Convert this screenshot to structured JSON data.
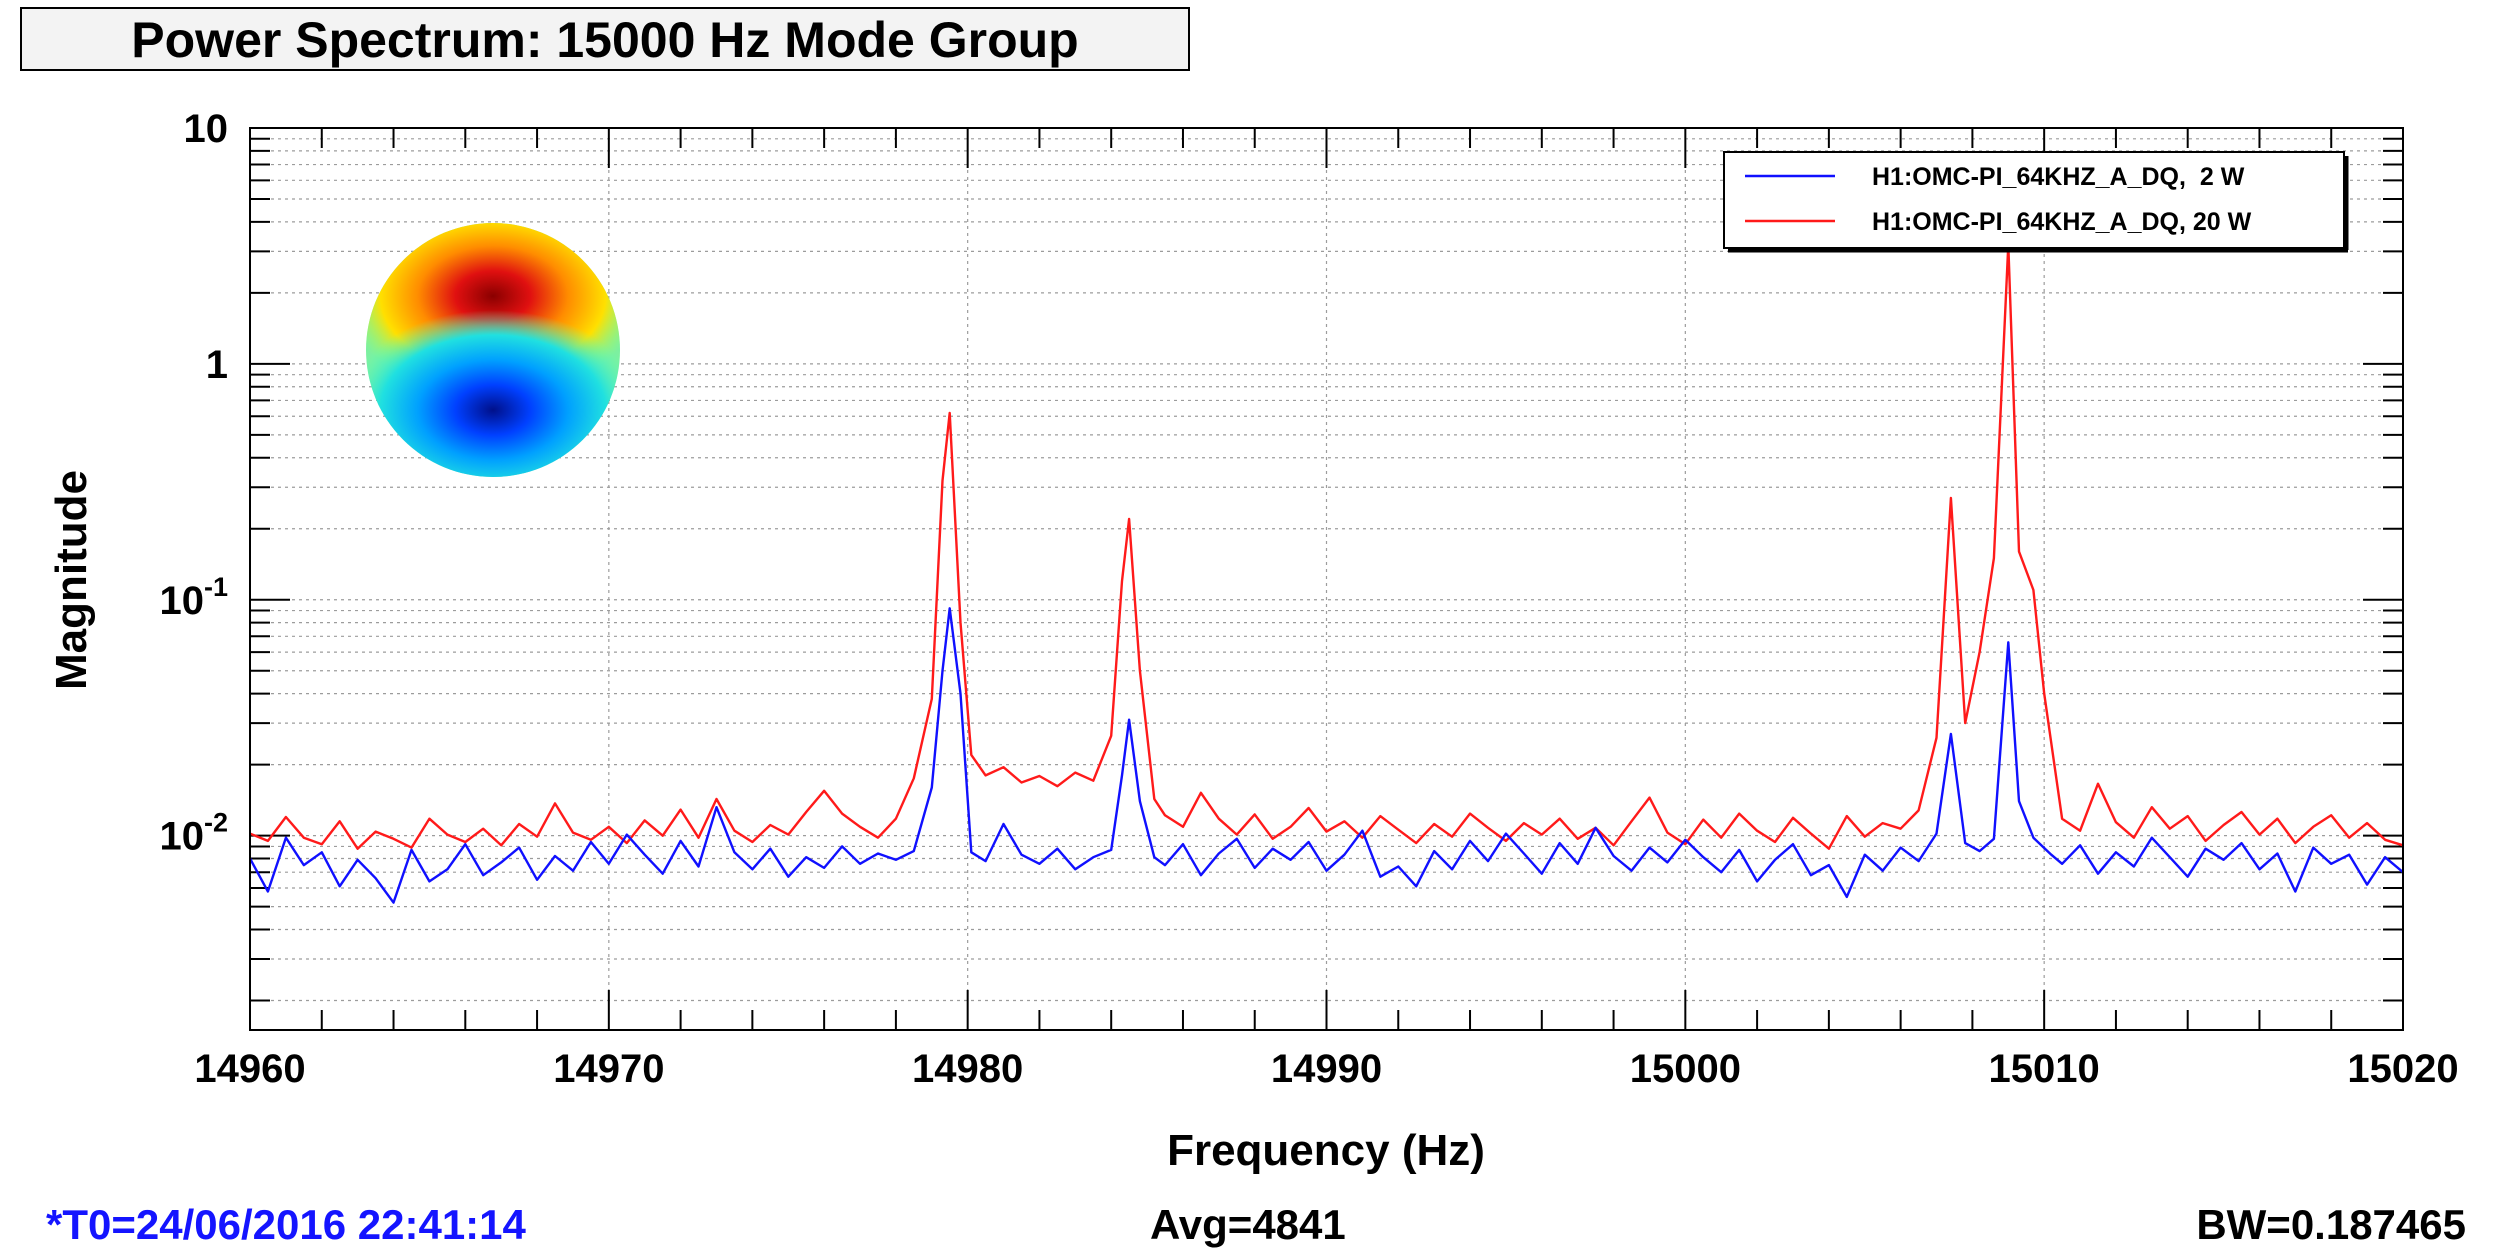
{
  "page_title": "Power Spectrum: 15000 Hz Mode Group",
  "footer": {
    "t0": "*T0=24/06/2016 22:41:14",
    "avg": "Avg=4841",
    "bw": "BW=0.187465"
  },
  "colors": {
    "series_2w": "#1010ff",
    "series_20w": "#ff1a1a",
    "footer_t0": "#1414ff",
    "grid": "#9c9c9c",
    "title_box": "#f3f3f3"
  },
  "inset_image": "mode-shape-image",
  "chart_data": {
    "type": "line",
    "title": "Power Spectrum: 15000 Hz Mode Group",
    "xlabel": "Frequency (Hz)",
    "ylabel": "Magnitude",
    "xlim": [
      14960,
      15020
    ],
    "ylim": [
      0.0015,
      10
    ],
    "yscale": "log",
    "grid": true,
    "legend_position": "top-right",
    "x_ticks": [
      {
        "value": 14960,
        "label": "14960"
      },
      {
        "value": 14970,
        "label": "14970"
      },
      {
        "value": 14980,
        "label": "14980"
      },
      {
        "value": 14990,
        "label": "14990"
      },
      {
        "value": 15000,
        "label": "15000"
      },
      {
        "value": 15010,
        "label": "15010"
      },
      {
        "value": 15020,
        "label": "15020"
      }
    ],
    "y_ticks": [
      {
        "value": 10,
        "base": "10",
        "exp": ""
      },
      {
        "value": 1,
        "base": "1",
        "exp": ""
      },
      {
        "value": 0.1,
        "base": "10",
        "exp": "-1"
      },
      {
        "value": 0.01,
        "base": "10",
        "exp": "-2"
      }
    ],
    "series": [
      {
        "name": "H1:OMC-PI_64KHZ_A_DQ,  2 W",
        "color": "#1010ff",
        "points": [
          [
            14960.0,
            0.008
          ],
          [
            14960.5,
            0.0058
          ],
          [
            14961.0,
            0.0098
          ],
          [
            14961.5,
            0.0075
          ],
          [
            14962.0,
            0.0085
          ],
          [
            14962.5,
            0.0061
          ],
          [
            14963.0,
            0.0079
          ],
          [
            14963.5,
            0.0066
          ],
          [
            14964.0,
            0.0052
          ],
          [
            14964.5,
            0.0087
          ],
          [
            14965.0,
            0.0064
          ],
          [
            14965.5,
            0.0072
          ],
          [
            14966.0,
            0.0092
          ],
          [
            14966.5,
            0.0068
          ],
          [
            14967.0,
            0.0077
          ],
          [
            14967.5,
            0.0089
          ],
          [
            14968.0,
            0.0065
          ],
          [
            14968.5,
            0.0082
          ],
          [
            14969.0,
            0.0071
          ],
          [
            14969.5,
            0.0094
          ],
          [
            14970.0,
            0.0076
          ],
          [
            14970.5,
            0.0101
          ],
          [
            14971.0,
            0.0083
          ],
          [
            14971.5,
            0.0069
          ],
          [
            14972.0,
            0.0095
          ],
          [
            14972.5,
            0.0074
          ],
          [
            14973.0,
            0.0132
          ],
          [
            14973.5,
            0.0085
          ],
          [
            14974.0,
            0.0072
          ],
          [
            14974.5,
            0.0088
          ],
          [
            14975.0,
            0.0067
          ],
          [
            14975.5,
            0.0081
          ],
          [
            14976.0,
            0.0073
          ],
          [
            14976.5,
            0.009
          ],
          [
            14977.0,
            0.0076
          ],
          [
            14977.5,
            0.0084
          ],
          [
            14978.0,
            0.0079
          ],
          [
            14978.5,
            0.0086
          ],
          [
            14979.0,
            0.016
          ],
          [
            14979.3,
            0.05
          ],
          [
            14979.5,
            0.092
          ],
          [
            14979.8,
            0.04
          ],
          [
            14980.1,
            0.0085
          ],
          [
            14980.5,
            0.0078
          ],
          [
            14981.0,
            0.0112
          ],
          [
            14981.5,
            0.0083
          ],
          [
            14982.0,
            0.0076
          ],
          [
            14982.5,
            0.0088
          ],
          [
            14983.0,
            0.0072
          ],
          [
            14983.5,
            0.0081
          ],
          [
            14984.0,
            0.0087
          ],
          [
            14984.3,
            0.018
          ],
          [
            14984.5,
            0.031
          ],
          [
            14984.8,
            0.014
          ],
          [
            14985.2,
            0.0081
          ],
          [
            14985.5,
            0.0075
          ],
          [
            14986.0,
            0.0092
          ],
          [
            14986.5,
            0.0068
          ],
          [
            14987.0,
            0.0084
          ],
          [
            14987.5,
            0.0097
          ],
          [
            14988.0,
            0.0073
          ],
          [
            14988.5,
            0.0088
          ],
          [
            14989.0,
            0.0079
          ],
          [
            14989.5,
            0.0094
          ],
          [
            14990.0,
            0.0071
          ],
          [
            14990.5,
            0.0083
          ],
          [
            14991.0,
            0.0105
          ],
          [
            14991.5,
            0.0067
          ],
          [
            14992.0,
            0.0074
          ],
          [
            14992.5,
            0.0061
          ],
          [
            14993.0,
            0.0086
          ],
          [
            14993.5,
            0.0072
          ],
          [
            14994.0,
            0.0095
          ],
          [
            14994.5,
            0.0078
          ],
          [
            14995.0,
            0.0102
          ],
          [
            14995.5,
            0.0084
          ],
          [
            14996.0,
            0.0069
          ],
          [
            14996.5,
            0.0093
          ],
          [
            14997.0,
            0.0076
          ],
          [
            14997.5,
            0.0108
          ],
          [
            14998.0,
            0.0082
          ],
          [
            14998.5,
            0.0071
          ],
          [
            14999.0,
            0.0089
          ],
          [
            14999.5,
            0.0077
          ],
          [
            15000.0,
            0.0096
          ],
          [
            15000.5,
            0.0081
          ],
          [
            15001.0,
            0.007
          ],
          [
            15001.5,
            0.0087
          ],
          [
            15002.0,
            0.0064
          ],
          [
            15002.5,
            0.0079
          ],
          [
            15003.0,
            0.0092
          ],
          [
            15003.5,
            0.0068
          ],
          [
            15004.0,
            0.0075
          ],
          [
            15004.5,
            0.0055
          ],
          [
            15005.0,
            0.0083
          ],
          [
            15005.5,
            0.0071
          ],
          [
            15006.0,
            0.0089
          ],
          [
            15006.5,
            0.0078
          ],
          [
            15007.0,
            0.0102
          ],
          [
            15007.4,
            0.027
          ],
          [
            15007.8,
            0.0093
          ],
          [
            15008.2,
            0.0086
          ],
          [
            15008.6,
            0.0097
          ],
          [
            15009.0,
            0.066
          ],
          [
            15009.3,
            0.014
          ],
          [
            15009.7,
            0.0098
          ],
          [
            15010.2,
            0.0083
          ],
          [
            15010.5,
            0.0076
          ],
          [
            15011.0,
            0.0091
          ],
          [
            15011.5,
            0.0069
          ],
          [
            15012.0,
            0.0085
          ],
          [
            15012.5,
            0.0074
          ],
          [
            15013.0,
            0.0098
          ],
          [
            15013.5,
            0.0081
          ],
          [
            15014.0,
            0.0067
          ],
          [
            15014.5,
            0.0088
          ],
          [
            15015.0,
            0.0079
          ],
          [
            15015.5,
            0.0093
          ],
          [
            15016.0,
            0.0072
          ],
          [
            15016.5,
            0.0084
          ],
          [
            15017.0,
            0.0058
          ],
          [
            15017.5,
            0.0089
          ],
          [
            15018.0,
            0.0076
          ],
          [
            15018.5,
            0.0083
          ],
          [
            15019.0,
            0.0062
          ],
          [
            15019.5,
            0.0081
          ],
          [
            15020.0,
            0.007
          ]
        ]
      },
      {
        "name": "H1:OMC-PI_64KHZ_A_DQ, 20 W",
        "color": "#ff1a1a",
        "points": [
          [
            14960.0,
            0.0102
          ],
          [
            14960.5,
            0.0095
          ],
          [
            14961.0,
            0.012
          ],
          [
            14961.5,
            0.0098
          ],
          [
            14962.0,
            0.0092
          ],
          [
            14962.5,
            0.0115
          ],
          [
            14963.0,
            0.0088
          ],
          [
            14963.5,
            0.0104
          ],
          [
            14964.0,
            0.0097
          ],
          [
            14964.5,
            0.0089
          ],
          [
            14965.0,
            0.0118
          ],
          [
            14965.5,
            0.0101
          ],
          [
            14966.0,
            0.0094
          ],
          [
            14966.5,
            0.0107
          ],
          [
            14967.0,
            0.0091
          ],
          [
            14967.5,
            0.0112
          ],
          [
            14968.0,
            0.0099
          ],
          [
            14968.5,
            0.0137
          ],
          [
            14969.0,
            0.0103
          ],
          [
            14969.5,
            0.0096
          ],
          [
            14970.0,
            0.0109
          ],
          [
            14970.5,
            0.0093
          ],
          [
            14971.0,
            0.0116
          ],
          [
            14971.5,
            0.01
          ],
          [
            14972.0,
            0.0129
          ],
          [
            14972.5,
            0.0098
          ],
          [
            14973.0,
            0.0143
          ],
          [
            14973.5,
            0.0105
          ],
          [
            14974.0,
            0.0094
          ],
          [
            14974.5,
            0.0111
          ],
          [
            14975.0,
            0.0101
          ],
          [
            14975.5,
            0.0126
          ],
          [
            14976.0,
            0.0155
          ],
          [
            14976.5,
            0.0124
          ],
          [
            14977.0,
            0.0109
          ],
          [
            14977.5,
            0.0098
          ],
          [
            14978.0,
            0.0118
          ],
          [
            14978.5,
            0.0175
          ],
          [
            14979.0,
            0.038
          ],
          [
            14979.3,
            0.32
          ],
          [
            14979.5,
            0.62
          ],
          [
            14979.8,
            0.08
          ],
          [
            14980.1,
            0.022
          ],
          [
            14980.5,
            0.018
          ],
          [
            14981.0,
            0.0195
          ],
          [
            14981.5,
            0.0168
          ],
          [
            14982.0,
            0.0179
          ],
          [
            14982.5,
            0.0162
          ],
          [
            14983.0,
            0.0185
          ],
          [
            14983.5,
            0.0171
          ],
          [
            14984.0,
            0.0265
          ],
          [
            14984.3,
            0.12
          ],
          [
            14984.5,
            0.22
          ],
          [
            14984.8,
            0.05
          ],
          [
            14985.2,
            0.0143
          ],
          [
            14985.5,
            0.0122
          ],
          [
            14986.0,
            0.0109
          ],
          [
            14986.5,
            0.0152
          ],
          [
            14987.0,
            0.0118
          ],
          [
            14987.5,
            0.0101
          ],
          [
            14988.0,
            0.0123
          ],
          [
            14988.5,
            0.0097
          ],
          [
            14989.0,
            0.0109
          ],
          [
            14989.5,
            0.0131
          ],
          [
            14990.0,
            0.0104
          ],
          [
            14990.5,
            0.0115
          ],
          [
            14991.0,
            0.0098
          ],
          [
            14991.5,
            0.0121
          ],
          [
            14992.0,
            0.0106
          ],
          [
            14992.5,
            0.0093
          ],
          [
            14993.0,
            0.0112
          ],
          [
            14993.5,
            0.0099
          ],
          [
            14994.0,
            0.0124
          ],
          [
            14994.5,
            0.0108
          ],
          [
            14995.0,
            0.0095
          ],
          [
            14995.5,
            0.0113
          ],
          [
            14996.0,
            0.0101
          ],
          [
            14996.5,
            0.0118
          ],
          [
            14997.0,
            0.0097
          ],
          [
            14997.5,
            0.0108
          ],
          [
            14998.0,
            0.0091
          ],
          [
            14998.5,
            0.0115
          ],
          [
            14999.0,
            0.0145
          ],
          [
            14999.5,
            0.0103
          ],
          [
            15000.0,
            0.0092
          ],
          [
            15000.5,
            0.0117
          ],
          [
            15001.0,
            0.0098
          ],
          [
            15001.5,
            0.0124
          ],
          [
            15002.0,
            0.0105
          ],
          [
            15002.5,
            0.0094
          ],
          [
            15003.0,
            0.0119
          ],
          [
            15003.5,
            0.0102
          ],
          [
            15004.0,
            0.0088
          ],
          [
            15004.5,
            0.0121
          ],
          [
            15005.0,
            0.0099
          ],
          [
            15005.5,
            0.0113
          ],
          [
            15006.0,
            0.0107
          ],
          [
            15006.5,
            0.0128
          ],
          [
            15007.0,
            0.026
          ],
          [
            15007.4,
            0.27
          ],
          [
            15007.8,
            0.03
          ],
          [
            15008.2,
            0.06
          ],
          [
            15008.6,
            0.15
          ],
          [
            15009.0,
            3.2
          ],
          [
            15009.3,
            0.16
          ],
          [
            15009.7,
            0.11
          ],
          [
            15010.0,
            0.04
          ],
          [
            15010.5,
            0.0118
          ],
          [
            15011.0,
            0.0105
          ],
          [
            15011.5,
            0.0166
          ],
          [
            15012.0,
            0.0114
          ],
          [
            15012.5,
            0.0098
          ],
          [
            15013.0,
            0.0132
          ],
          [
            15013.5,
            0.0107
          ],
          [
            15014.0,
            0.0121
          ],
          [
            15014.5,
            0.0095
          ],
          [
            15015.0,
            0.0111
          ],
          [
            15015.5,
            0.0126
          ],
          [
            15016.0,
            0.0101
          ],
          [
            15016.5,
            0.0118
          ],
          [
            15017.0,
            0.0093
          ],
          [
            15017.5,
            0.0109
          ],
          [
            15018.0,
            0.0122
          ],
          [
            15018.5,
            0.0098
          ],
          [
            15019.0,
            0.0113
          ],
          [
            15019.5,
            0.0096
          ],
          [
            15020.0,
            0.0091
          ]
        ]
      }
    ]
  }
}
